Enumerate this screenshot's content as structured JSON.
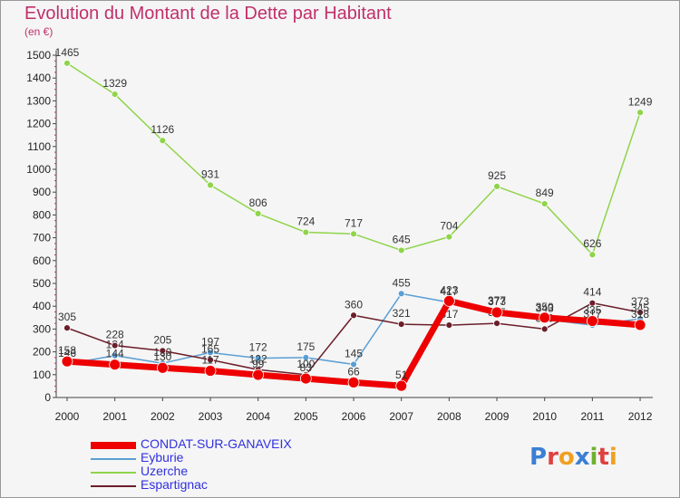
{
  "chart_data": {
    "type": "line",
    "title": "Evolution du Montant de la Dette par Habitant",
    "subtitle": "(en €)",
    "x": [
      "2000",
      "2001",
      "2002",
      "2003",
      "2004",
      "2005",
      "2006",
      "2007",
      "2008",
      "2009",
      "2010",
      "2011",
      "2012"
    ],
    "ylim": [
      0,
      1500
    ],
    "yticks": [
      0,
      100,
      200,
      300,
      400,
      500,
      600,
      700,
      800,
      900,
      1000,
      1100,
      1200,
      1300,
      1400,
      1500
    ],
    "grid": false,
    "legend_position": "bottom-left",
    "series": [
      {
        "name": "Eyburie",
        "color": "#5a9fd4",
        "width": 1.5,
        "values": [
          146,
          184,
          150,
          197,
          172,
          175,
          145,
          455,
          417,
          377,
          343,
          317,
          345
        ]
      },
      {
        "name": "Uzerche",
        "color": "#8fd44a",
        "width": 1.5,
        "values": [
          1465,
          1329,
          1126,
          931,
          806,
          724,
          717,
          645,
          704,
          925,
          849,
          626,
          1249
        ]
      },
      {
        "name": "Espartignac",
        "color": "#6b1e2a",
        "width": 1.5,
        "values": [
          305,
          228,
          205,
          165,
          122,
          100,
          360,
          321,
          317,
          325,
          300,
          414,
          373
        ]
      },
      {
        "name": "CONDAT-SUR-GANAVEIX",
        "color": "#ee0000",
        "width": 7,
        "values": [
          158,
          144,
          130,
          117,
          99,
          83,
          66,
          51,
          423,
          373,
          350,
          335,
          318
        ]
      }
    ]
  },
  "logo": {
    "text": "Proxiti"
  }
}
